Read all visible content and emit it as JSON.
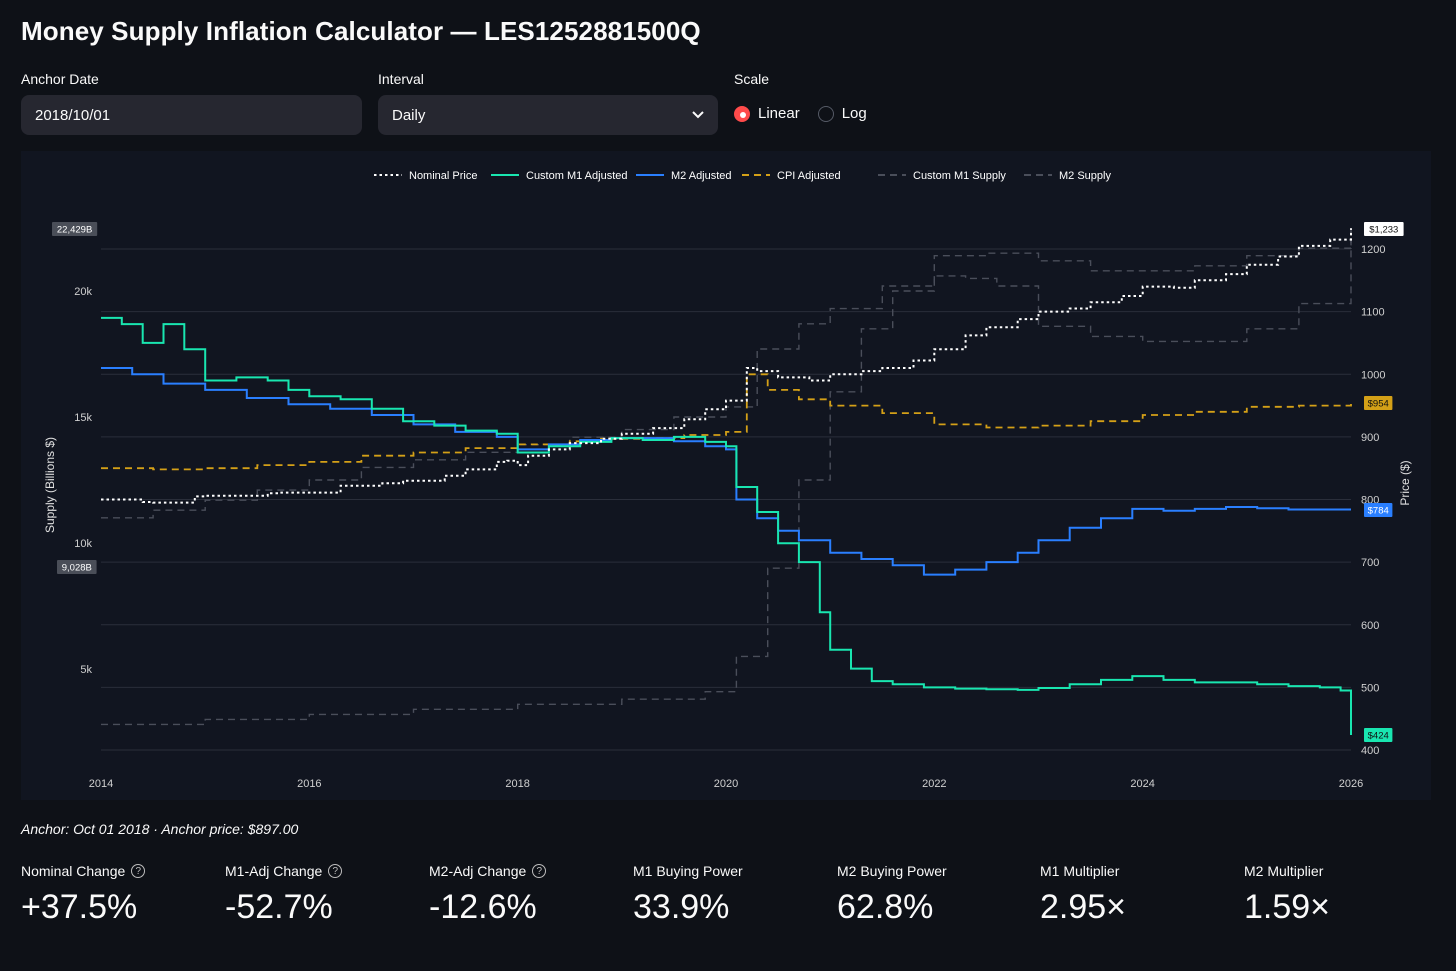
{
  "header": {
    "title": "Money Supply Inflation Calculator — LES1252881500Q"
  },
  "controls": {
    "anchor_label": "Anchor Date",
    "anchor_value": "2018/10/01",
    "interval_label": "Interval",
    "interval_value": "Daily",
    "scale_label": "Scale",
    "scale_options": [
      "Linear",
      "Log"
    ],
    "scale_selected": "Linear"
  },
  "chart_data": {
    "type": "line",
    "legend": [
      "Nominal Price",
      "Custom M1 Adjusted",
      "M2 Adjusted",
      "CPI Adjusted",
      "Custom M1 Supply",
      "M2 Supply"
    ],
    "legend_placement": "top-center",
    "colors": {
      "Nominal Price": "#ffffff",
      "Custom M1 Adjusted": "#19e6b0",
      "M2 Adjusted": "#2a7fff",
      "CPI Adjusted": "#d4a017",
      "Custom M1 Supply": "#4a4e5a",
      "M2 Supply": "#4a4e5a"
    },
    "x_ticks": [
      "2014",
      "2016",
      "2018",
      "2020",
      "2022",
      "2024",
      "2026"
    ],
    "xlim": [
      2014,
      2026
    ],
    "y_left": {
      "label": "Supply (Billions $)",
      "ticks": [
        "5k",
        "10k",
        "15k",
        "20k"
      ],
      "range": [
        2000,
        22429
      ]
    },
    "y_right": {
      "label": "Price ($)",
      "ticks": [
        "400",
        "500",
        "600",
        "700",
        "800",
        "900",
        "1000",
        "1100",
        "1200"
      ],
      "range": [
        400,
        1233
      ]
    },
    "badges": {
      "left_max": "22,429B",
      "left_min": "9,028B",
      "nominal": "$1,233",
      "cpi": "$954",
      "m2": "$784",
      "m1": "$424"
    },
    "series": [
      {
        "name": "Nominal Price",
        "axis": "right",
        "style": "dotted",
        "x": [
          2014,
          2014.4,
          2014.5,
          2014.9,
          2015,
          2015.6,
          2015.7,
          2016.3,
          2016.7,
          2016.9,
          2017.3,
          2017.5,
          2017.8,
          2017.9,
          2018.0,
          2018.1,
          2018.3,
          2018.5,
          2018.8,
          2019,
          2019.3,
          2019.6,
          2019.8,
          2020.0,
          2020.2,
          2020.3,
          2020.5,
          2020.8,
          2021.0,
          2021.3,
          2021.5,
          2021.8,
          2022.0,
          2022.3,
          2022.5,
          2022.8,
          2023.0,
          2023.3,
          2023.5,
          2023.8,
          2024.0,
          2024.3,
          2024.5,
          2024.8,
          2025.0,
          2025.3,
          2025.5,
          2025.8,
          2026
        ],
        "y": [
          800,
          796,
          795,
          805,
          806,
          810,
          811,
          822,
          826,
          830,
          838,
          848,
          860,
          862,
          855,
          870,
          880,
          890,
          897,
          905,
          914,
          928,
          944,
          958,
          1010,
          1005,
          995,
          990,
          1000,
          1005,
          1010,
          1022,
          1040,
          1062,
          1075,
          1088,
          1100,
          1105,
          1115,
          1125,
          1140,
          1138,
          1150,
          1160,
          1175,
          1188,
          1205,
          1215,
          1233
        ]
      },
      {
        "name": "Custom M1 Adjusted",
        "axis": "right",
        "style": "solid",
        "x": [
          2014,
          2014.2,
          2014.4,
          2014.6,
          2014.8,
          2015,
          2015.3,
          2015.6,
          2015.8,
          2016,
          2016.3,
          2016.6,
          2016.9,
          2017.2,
          2017.5,
          2017.8,
          2018.0,
          2018.3,
          2018.6,
          2018.9,
          2019.2,
          2019.5,
          2019.8,
          2020.0,
          2020.1,
          2020.3,
          2020.5,
          2020.7,
          2020.9,
          2021.0,
          2021.2,
          2021.4,
          2021.6,
          2021.9,
          2022.2,
          2022.5,
          2022.8,
          2023.0,
          2023.3,
          2023.6,
          2023.9,
          2024.2,
          2024.5,
          2024.8,
          2025.1,
          2025.4,
          2025.7,
          2025.9,
          2026
        ],
        "y": [
          1090,
          1080,
          1050,
          1080,
          1040,
          990,
          995,
          990,
          975,
          965,
          960,
          945,
          925,
          918,
          910,
          905,
          875,
          885,
          892,
          898,
          895,
          900,
          892,
          885,
          820,
          780,
          730,
          700,
          620,
          560,
          530,
          510,
          505,
          500,
          498,
          497,
          496,
          499,
          505,
          512,
          518,
          512,
          508,
          508,
          505,
          502,
          500,
          495,
          424
        ]
      },
      {
        "name": "M2 Adjusted",
        "axis": "right",
        "style": "solid",
        "x": [
          2014,
          2014.3,
          2014.6,
          2015,
          2015.4,
          2015.8,
          2016.2,
          2016.6,
          2017.0,
          2017.4,
          2017.8,
          2018.0,
          2018.3,
          2018.6,
          2018.9,
          2019.2,
          2019.5,
          2019.8,
          2020.0,
          2020.1,
          2020.3,
          2020.5,
          2020.7,
          2021.0,
          2021.3,
          2021.6,
          2021.9,
          2022.2,
          2022.5,
          2022.8,
          2023.0,
          2023.3,
          2023.6,
          2023.9,
          2024.2,
          2024.5,
          2024.8,
          2025.1,
          2025.4,
          2025.7,
          2026
        ],
        "y": [
          1010,
          1000,
          985,
          975,
          962,
          952,
          945,
          935,
          920,
          908,
          900,
          880,
          888,
          895,
          898,
          898,
          893,
          885,
          880,
          800,
          770,
          750,
          735,
          715,
          705,
          695,
          680,
          688,
          700,
          715,
          735,
          755,
          770,
          785,
          782,
          785,
          788,
          786,
          784,
          784,
          784
        ]
      },
      {
        "name": "CPI Adjusted",
        "axis": "right",
        "style": "dashed",
        "x": [
          2014,
          2014.5,
          2015,
          2015.5,
          2016,
          2016.5,
          2017,
          2017.5,
          2018,
          2018.5,
          2018.8,
          2019.2,
          2019.6,
          2020.0,
          2020.2,
          2020.4,
          2020.7,
          2021.0,
          2021.5,
          2022.0,
          2022.5,
          2023.0,
          2023.5,
          2024.0,
          2024.5,
          2025.0,
          2025.5,
          2026
        ],
        "y": [
          850,
          848,
          850,
          855,
          860,
          870,
          875,
          882,
          888,
          893,
          897,
          898,
          903,
          908,
          1000,
          975,
          960,
          950,
          938,
          920,
          915,
          918,
          925,
          935,
          940,
          948,
          950,
          954
        ]
      },
      {
        "name": "Custom M1 Supply",
        "axis": "left",
        "style": "dashed",
        "x": [
          2014,
          2015,
          2016,
          2017,
          2018,
          2019,
          2019.8,
          2020.1,
          2020.4,
          2020.7,
          2021.0,
          2021.3,
          2021.6,
          2022.0,
          2022.3,
          2022.6,
          2023.0,
          2023.5,
          2024.0,
          2024.5,
          2025.0,
          2025.5,
          2026
        ],
        "y": [
          2800,
          3000,
          3200,
          3400,
          3600,
          3800,
          4100,
          5500,
          9000,
          12500,
          16000,
          18500,
          20000,
          20600,
          20500,
          20200,
          18600,
          18200,
          18000,
          18000,
          18500,
          19500,
          22429
        ]
      },
      {
        "name": "M2 Supply",
        "axis": "left",
        "style": "dashed",
        "x": [
          2014,
          2014.5,
          2015,
          2015.5,
          2016,
          2016.5,
          2017,
          2017.5,
          2018,
          2018.5,
          2019,
          2019.5,
          2020,
          2020.3,
          2020.7,
          2021.0,
          2021.5,
          2022.0,
          2022.5,
          2023.0,
          2023.5,
          2024.0,
          2024.5,
          2025.0,
          2025.5,
          2026
        ],
        "y": [
          11000,
          11300,
          11700,
          12100,
          12500,
          13000,
          13300,
          13600,
          13900,
          14200,
          14500,
          15000,
          15400,
          17700,
          18700,
          19300,
          20200,
          21400,
          21500,
          21200,
          20800,
          20800,
          21000,
          21400,
          21700,
          22000
        ]
      }
    ]
  },
  "caption": "Anchor: Oct 01 2018 · Anchor price: $897.00",
  "metrics": [
    {
      "label": "Nominal Change",
      "value": "+37.5%",
      "help": true
    },
    {
      "label": "M1-Adj Change",
      "value": "-52.7%",
      "help": true
    },
    {
      "label": "M2-Adj Change",
      "value": "-12.6%",
      "help": true
    },
    {
      "label": "M1 Buying Power",
      "value": "33.9%",
      "help": false
    },
    {
      "label": "M2 Buying Power",
      "value": "62.8%",
      "help": false
    },
    {
      "label": "M1 Multiplier",
      "value": "2.95×",
      "help": false
    },
    {
      "label": "M2 Multiplier",
      "value": "1.59×",
      "help": false
    }
  ]
}
